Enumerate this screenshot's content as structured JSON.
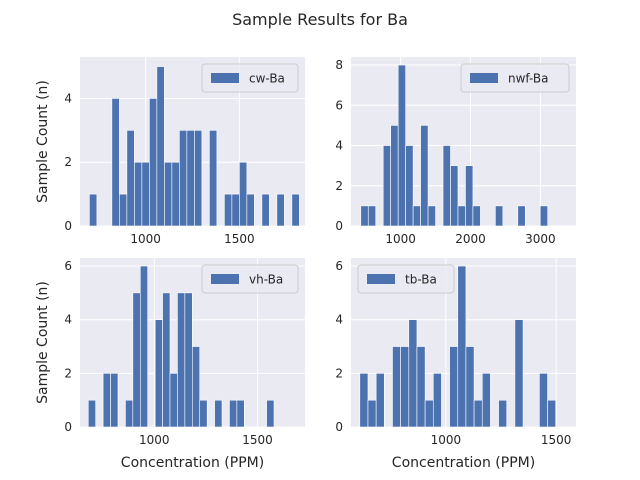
{
  "figure": {
    "title": "Sample Results for Ba",
    "colors": {
      "axes_bg": "#eaeaf2",
      "bar": "#4c72b0",
      "grid": "#ffffff",
      "text": "#262626"
    }
  },
  "chart_data": [
    {
      "type": "bar",
      "legend": "cw-Ba",
      "legend_position": "top-right",
      "ylabel": "Sample Count (n)",
      "xlabel": "",
      "xlim": [
        650,
        1850
      ],
      "ylim": [
        0,
        5.3
      ],
      "xticks": [
        1000,
        1500
      ],
      "yticks": [
        0,
        2,
        4
      ],
      "bins": {
        "start": 700,
        "width": 40
      },
      "counts": [
        1,
        0,
        0,
        4,
        1,
        3,
        2,
        2,
        4,
        5,
        2,
        2,
        3,
        3,
        3,
        0,
        3,
        0,
        1,
        1,
        2,
        1,
        0,
        1,
        0,
        1,
        0,
        1
      ],
      "grid": true
    },
    {
      "type": "bar",
      "legend": "nwf-Ba",
      "legend_position": "top-right",
      "ylabel": "",
      "xlabel": "",
      "xlim": [
        290,
        3510
      ],
      "ylim": [
        0,
        8.4
      ],
      "xticks": [
        1000,
        2000,
        3000
      ],
      "yticks": [
        0,
        2,
        4,
        6,
        8
      ],
      "bins": {
        "start": 430,
        "width": 107
      },
      "counts": [
        1,
        1,
        0,
        4,
        5,
        8,
        4,
        1,
        5,
        1,
        0,
        4,
        3,
        1,
        3,
        1,
        0,
        0,
        1,
        0,
        0,
        1,
        0,
        0,
        1
      ],
      "grid": true
    },
    {
      "type": "bar",
      "legend": "vh-Ba",
      "legend_position": "top-right",
      "ylabel": "Sample Count (n)",
      "xlabel": "Concentration (PPM)",
      "xlim": [
        640,
        1730
      ],
      "ylim": [
        0,
        6.3
      ],
      "xticks": [
        1000,
        1500
      ],
      "yticks": [
        0,
        2,
        4,
        6
      ],
      "bins": {
        "start": 680,
        "width": 36
      },
      "counts": [
        1,
        0,
        2,
        2,
        0,
        1,
        5,
        6,
        0,
        4,
        5,
        2,
        5,
        5,
        3,
        1,
        0,
        1,
        0,
        1,
        1,
        0,
        0,
        0,
        1
      ],
      "grid": true
    },
    {
      "type": "bar",
      "legend": "tb-Ba",
      "legend_position": "top-left",
      "ylabel": "",
      "xlabel": "Concentration (PPM)",
      "xlim": [
        570,
        1590
      ],
      "ylim": [
        0,
        6.3
      ],
      "xticks": [
        1000,
        1500
      ],
      "yticks": [
        0,
        2,
        4,
        6
      ],
      "bins": {
        "start": 610,
        "width": 37
      },
      "counts": [
        2,
        1,
        2,
        0,
        3,
        3,
        4,
        3,
        1,
        2,
        0,
        3,
        6,
        3,
        1,
        2,
        0,
        1,
        0,
        4,
        0,
        0,
        2,
        1
      ],
      "grid": true
    }
  ]
}
